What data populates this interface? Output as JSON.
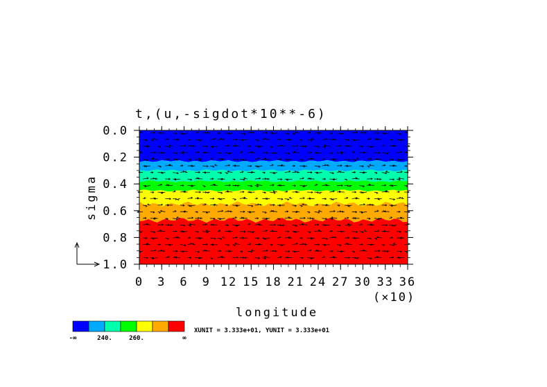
{
  "chart_data": {
    "type": "heatmap",
    "title": "t,(u,-sigdot*10**-6)",
    "xlabel": "longitude",
    "ylabel": "sigma",
    "x_multiplier_label": "(×10)",
    "xlim": [
      0,
      36
    ],
    "ylim": [
      0.0,
      1.0
    ],
    "y_inverted": true,
    "x_ticks": [
      "0",
      "3",
      "6",
      "9",
      "12",
      "15",
      "18",
      "21",
      "24",
      "27",
      "30",
      "33",
      "36"
    ],
    "y_ticks": [
      "0.0",
      "0.2",
      "0.4",
      "0.6",
      "0.8",
      "1.0"
    ],
    "color_bands": [
      {
        "color": "#0000ff",
        "sigma_top": 0.0,
        "sigma_bottom": 0.23
      },
      {
        "color": "#00aaff",
        "sigma_top": 0.23,
        "sigma_bottom": 0.3
      },
      {
        "color": "#00ffaa",
        "sigma_top": 0.3,
        "sigma_bottom": 0.38
      },
      {
        "color": "#00ff00",
        "sigma_top": 0.38,
        "sigma_bottom": 0.45
      },
      {
        "color": "#ffff00",
        "sigma_top": 0.45,
        "sigma_bottom": 0.55
      },
      {
        "color": "#ffaa00",
        "sigma_top": 0.55,
        "sigma_bottom": 0.67
      },
      {
        "color": "#ff0000",
        "sigma_top": 0.67,
        "sigma_bottom": 1.0
      }
    ],
    "colorbar": {
      "colors": [
        "#0000ff",
        "#00aaff",
        "#00ffaa",
        "#00ff00",
        "#ffff00",
        "#ffaa00",
        "#ff0000"
      ],
      "labels": [
        "-∞",
        "240.",
        "260.",
        "∞"
      ]
    },
    "units_text": "XUNIT = 3.333e+01, YUNIT = 3.333e+01",
    "vectors": "wind vectors (u, -sigdot) overlaid on temperature field"
  }
}
